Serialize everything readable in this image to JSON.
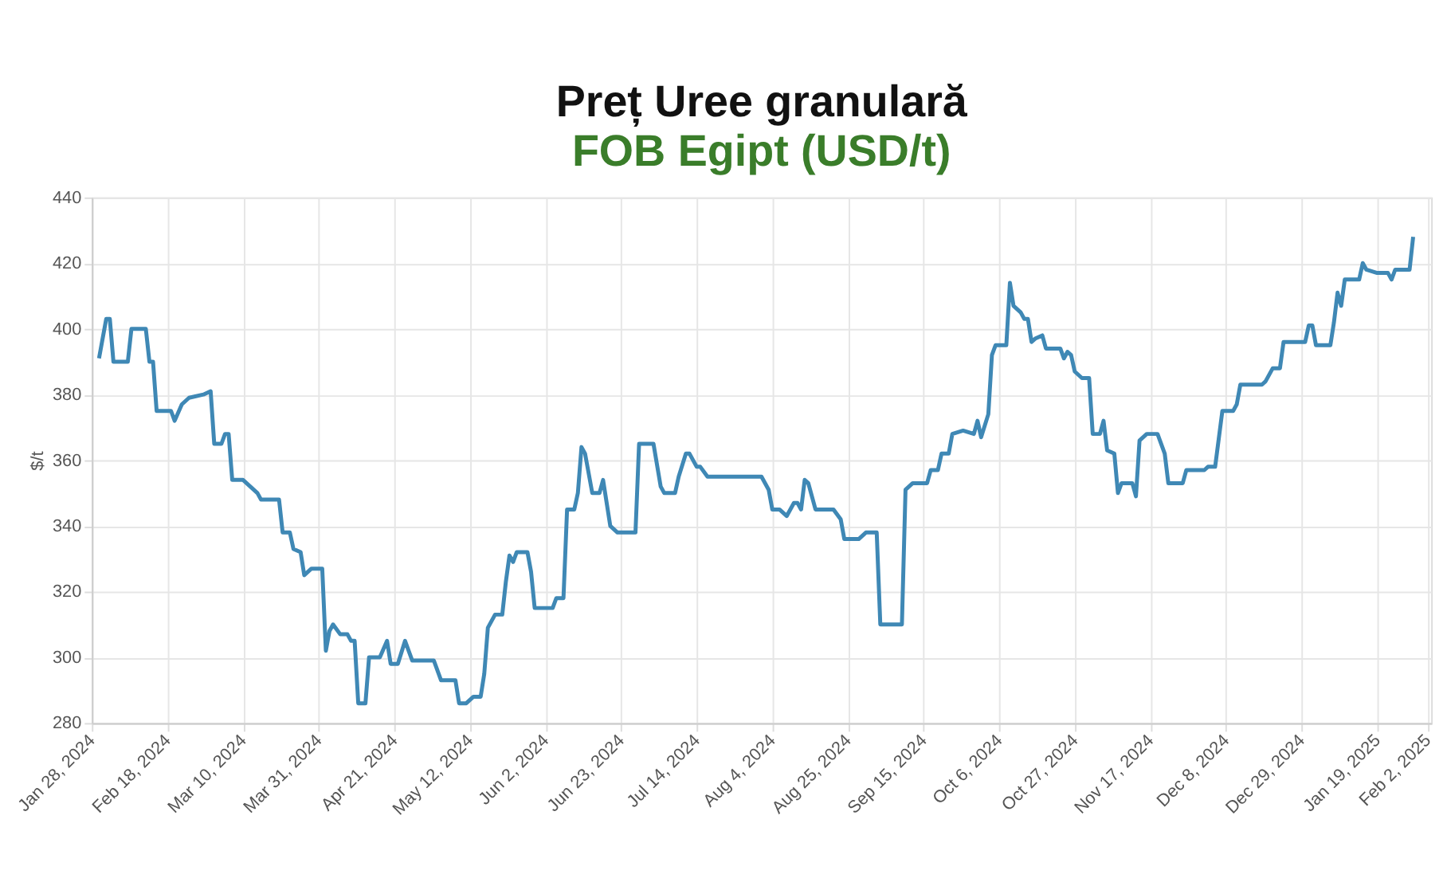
{
  "chart_data": {
    "type": "line",
    "title": "Preț Uree granulară",
    "subtitle": "FOB Egipt (USD/t)",
    "ylabel": "$/t",
    "xlim": [
      "2024-01-28",
      "2025-02-03"
    ],
    "xticks": [
      {
        "value": "2024-01-28",
        "label": "Jan 28, 2024"
      },
      {
        "value": "2024-02-18",
        "label": "Feb 18, 2024"
      },
      {
        "value": "2024-03-10",
        "label": "Mar 10, 2024"
      },
      {
        "value": "2024-03-31",
        "label": "Mar 31, 2024"
      },
      {
        "value": "2024-04-21",
        "label": "Apr 21, 2024"
      },
      {
        "value": "2024-05-12",
        "label": "May 12, 2024"
      },
      {
        "value": "2024-06-02",
        "label": "Jun 2, 2024"
      },
      {
        "value": "2024-06-23",
        "label": "Jun 23, 2024"
      },
      {
        "value": "2024-07-14",
        "label": "Jul 14, 2024"
      },
      {
        "value": "2024-08-04",
        "label": "Aug 4, 2024"
      },
      {
        "value": "2024-08-25",
        "label": "Aug 25, 2024"
      },
      {
        "value": "2024-09-15",
        "label": "Sep 15, 2024"
      },
      {
        "value": "2024-10-06",
        "label": "Oct 6, 2024"
      },
      {
        "value": "2024-10-27",
        "label": "Oct 27, 2024"
      },
      {
        "value": "2024-11-17",
        "label": "Nov 17, 2024"
      },
      {
        "value": "2024-12-08",
        "label": "Dec 8, 2024"
      },
      {
        "value": "2024-12-29",
        "label": "Dec 29, 2024"
      },
      {
        "value": "2025-01-19",
        "label": "Jan 19, 2025"
      },
      {
        "value": "2025-02-02",
        "label": "Feb 2, 2025"
      }
    ],
    "ylim": [
      280,
      440
    ],
    "yticks": [
      280,
      300,
      320,
      340,
      360,
      380,
      400,
      420,
      440
    ],
    "grid": true,
    "line_style": "solid",
    "marker": "none",
    "x": [
      "2024-01-30",
      "2024-02-01",
      "2024-02-02",
      "2024-02-03",
      "2024-02-07",
      "2024-02-08",
      "2024-02-12",
      "2024-02-13",
      "2024-02-14",
      "2024-02-15",
      "2024-02-17",
      "2024-02-19",
      "2024-02-20",
      "2024-02-22",
      "2024-02-24",
      "2024-02-28",
      "2024-03-01",
      "2024-03-02",
      "2024-03-04",
      "2024-03-05",
      "2024-03-06",
      "2024-03-07",
      "2024-03-10",
      "2024-03-12",
      "2024-03-14",
      "2024-03-15",
      "2024-03-20",
      "2024-03-21",
      "2024-03-23",
      "2024-03-24",
      "2024-03-26",
      "2024-03-27",
      "2024-03-29",
      "2024-04-01",
      "2024-04-02",
      "2024-04-03",
      "2024-04-04",
      "2024-04-06",
      "2024-04-08",
      "2024-04-09",
      "2024-04-10",
      "2024-04-11",
      "2024-04-13",
      "2024-04-14",
      "2024-04-17",
      "2024-04-19",
      "2024-04-20",
      "2024-04-22",
      "2024-04-24",
      "2024-04-26",
      "2024-05-02",
      "2024-05-04",
      "2024-05-08",
      "2024-05-09",
      "2024-05-11",
      "2024-05-13",
      "2024-05-15",
      "2024-05-16",
      "2024-05-17",
      "2024-05-19",
      "2024-05-21",
      "2024-05-22",
      "2024-05-23",
      "2024-05-24",
      "2024-05-25",
      "2024-05-28",
      "2024-05-29",
      "2024-05-30",
      "2024-06-04",
      "2024-06-05",
      "2024-06-07",
      "2024-06-08",
      "2024-06-10",
      "2024-06-11",
      "2024-06-12",
      "2024-06-13",
      "2024-06-15",
      "2024-06-17",
      "2024-06-18",
      "2024-06-20",
      "2024-06-22",
      "2024-06-27",
      "2024-06-28",
      "2024-07-02",
      "2024-07-04",
      "2024-07-05",
      "2024-07-08",
      "2024-07-09",
      "2024-07-11",
      "2024-07-12",
      "2024-07-14",
      "2024-07-15",
      "2024-07-17",
      "2024-08-01",
      "2024-08-03",
      "2024-08-04",
      "2024-08-06",
      "2024-08-08",
      "2024-08-10",
      "2024-08-11",
      "2024-08-12",
      "2024-08-13",
      "2024-08-14",
      "2024-08-16",
      "2024-08-21",
      "2024-08-23",
      "2024-08-24",
      "2024-08-28",
      "2024-08-30",
      "2024-09-02",
      "2024-09-03",
      "2024-09-09",
      "2024-09-10",
      "2024-09-12",
      "2024-09-16",
      "2024-09-17",
      "2024-09-19",
      "2024-09-20",
      "2024-09-22",
      "2024-09-23",
      "2024-09-26",
      "2024-09-29",
      "2024-09-30",
      "2024-10-01",
      "2024-10-03",
      "2024-10-04",
      "2024-10-05",
      "2024-10-08",
      "2024-10-09",
      "2024-10-10",
      "2024-10-12",
      "2024-10-13",
      "2024-10-14",
      "2024-10-15",
      "2024-10-16",
      "2024-10-18",
      "2024-10-19",
      "2024-10-23",
      "2024-10-24",
      "2024-10-25",
      "2024-10-26",
      "2024-10-27",
      "2024-10-29",
      "2024-10-31",
      "2024-11-01",
      "2024-11-03",
      "2024-11-04",
      "2024-11-05",
      "2024-11-07",
      "2024-11-08",
      "2024-11-09",
      "2024-11-12",
      "2024-11-13",
      "2024-11-14",
      "2024-11-16",
      "2024-11-19",
      "2024-11-21",
      "2024-11-22",
      "2024-11-26",
      "2024-11-27",
      "2024-11-29",
      "2024-12-02",
      "2024-12-03",
      "2024-12-05",
      "2024-12-07",
      "2024-12-09",
      "2024-12-10",
      "2024-12-11",
      "2024-12-12",
      "2024-12-14",
      "2024-12-18",
      "2024-12-19",
      "2024-12-21",
      "2024-12-23",
      "2024-12-24",
      "2024-12-30",
      "2024-12-31",
      "2025-01-01",
      "2025-01-02",
      "2025-01-06",
      "2025-01-07",
      "2025-01-08",
      "2025-01-09",
      "2025-01-10",
      "2025-01-14",
      "2025-01-15",
      "2025-01-16",
      "2025-01-19",
      "2025-01-22",
      "2025-01-23",
      "2025-01-24",
      "2025-01-28",
      "2025-01-29"
    ],
    "series": [
      {
        "color": "#3f88b5",
        "values": [
          391,
          403,
          403,
          390,
          390,
          400,
          400,
          390,
          390,
          375,
          375,
          375,
          372,
          377,
          379,
          380,
          381,
          365,
          365,
          368,
          368,
          354,
          354,
          352,
          350,
          348,
          348,
          338,
          338,
          333,
          332,
          325,
          327,
          327,
          302,
          308,
          310,
          307,
          307,
          305,
          305,
          286,
          286,
          300,
          300,
          305,
          298,
          298,
          305,
          299,
          299,
          293,
          293,
          286,
          286,
          288,
          288,
          295,
          309,
          313,
          313,
          323,
          331,
          329,
          332,
          332,
          326,
          315,
          315,
          318,
          318,
          345,
          345,
          350,
          364,
          362,
          350,
          350,
          354,
          340,
          338,
          338,
          365,
          365,
          352,
          350,
          350,
          355,
          362,
          362,
          358,
          358,
          355,
          355,
          351,
          345,
          345,
          343,
          347,
          347,
          345,
          354,
          353,
          345,
          345,
          342,
          336,
          336,
          338,
          338,
          310,
          310,
          351,
          353,
          353,
          357,
          357,
          362,
          362,
          368,
          369,
          368,
          372,
          367,
          374,
          392,
          395,
          395,
          414,
          407,
          405,
          403,
          403,
          396,
          397,
          398,
          394,
          394,
          391,
          393,
          392,
          387,
          385,
          385,
          368,
          368,
          372,
          363,
          362,
          350,
          353,
          353,
          349,
          366,
          368,
          368,
          362,
          353,
          353,
          357,
          357,
          357,
          358,
          358,
          375,
          375,
          375,
          377,
          383,
          383,
          383,
          384,
          388,
          388,
          396,
          396,
          401,
          401,
          395,
          395,
          402,
          411,
          407,
          415,
          415,
          420,
          418,
          417,
          417,
          415,
          418,
          418,
          428
        ]
      }
    ]
  }
}
